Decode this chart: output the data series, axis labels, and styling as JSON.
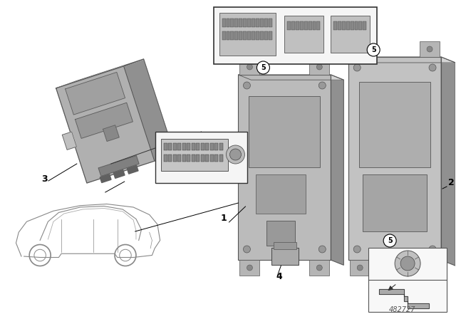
{
  "bg_color": "#ffffff",
  "diagram_number": "482727",
  "part_color_light": "#c8c8c8",
  "part_color_mid": "#b0b0b0",
  "part_color_dark": "#909090",
  "part_edge": "#555555",
  "line_color": "#000000",
  "label_fontsize": 9
}
